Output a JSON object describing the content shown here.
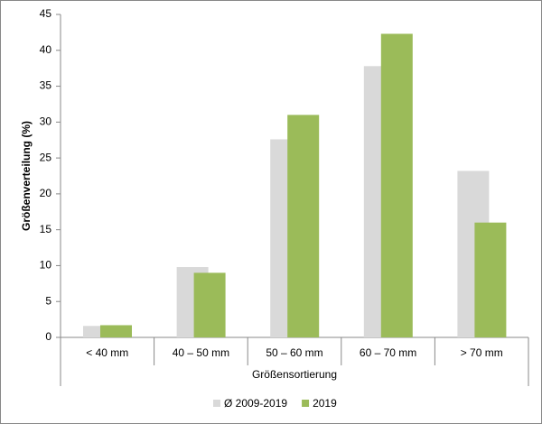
{
  "chart_data": {
    "type": "bar",
    "categories": [
      "< 40 mm",
      "40 – 50 mm",
      "50 – 60 mm",
      "60 – 70 mm",
      "> 70 mm"
    ],
    "series": [
      {
        "name": "Ø 2009-2019",
        "color": "#d9d9d9",
        "values": [
          1.6,
          9.8,
          27.6,
          37.8,
          23.2
        ]
      },
      {
        "name": "2019",
        "color": "#9bbb59",
        "values": [
          1.7,
          9.0,
          31.0,
          42.3,
          16.0
        ]
      }
    ],
    "xlabel": "Größensortierung",
    "ylabel": "Größenverteilung (%)",
    "ylim": [
      0,
      45
    ],
    "yticks": [
      0,
      5,
      10,
      15,
      20,
      25,
      30,
      35,
      40,
      45
    ],
    "grid": false,
    "legend": "bottom"
  }
}
